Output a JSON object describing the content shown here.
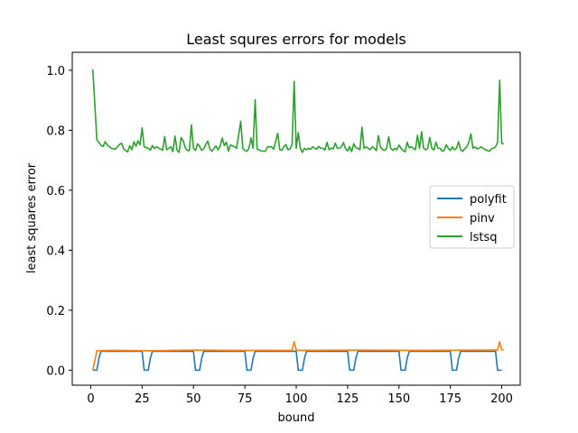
{
  "chart_data": {
    "type": "line",
    "title": "Least squres errors for models",
    "xlabel": "bound",
    "ylabel": "least squares error",
    "xlim": [
      -9,
      209
    ],
    "ylim": [
      -0.05,
      1.06
    ],
    "xticks": [
      0,
      25,
      50,
      75,
      100,
      125,
      150,
      175,
      200
    ],
    "yticks": [
      0.0,
      0.2,
      0.4,
      0.6,
      0.8,
      1.0
    ],
    "legend_position": "center-right",
    "grid": false,
    "series": [
      {
        "name": "polyfit",
        "color": "#1f77b4",
        "pattern": {
          "x_start": 1,
          "x_end": 200,
          "period": 25,
          "zero_len": 3,
          "ramp_start": 0.04,
          "plateau": 0.063,
          "x_step": 1
        }
      },
      {
        "name": "pinv",
        "color": "#ff7f0e",
        "points": [
          [
            1,
            0.0
          ],
          [
            3,
            0.065
          ],
          [
            10,
            0.066
          ],
          [
            30,
            0.065
          ],
          [
            50,
            0.067
          ],
          [
            70,
            0.066
          ],
          [
            98,
            0.066
          ],
          [
            99,
            0.095
          ],
          [
            100,
            0.068
          ],
          [
            101,
            0.066
          ],
          [
            130,
            0.067
          ],
          [
            160,
            0.066
          ],
          [
            190,
            0.067
          ],
          [
            198,
            0.067
          ],
          [
            199,
            0.095
          ],
          [
            200,
            0.068
          ],
          [
            201,
            0.067
          ]
        ]
      },
      {
        "name": "lstsq",
        "color": "#2ca02c",
        "points": [
          [
            1,
            1.003
          ],
          [
            3,
            0.768
          ],
          [
            5,
            0.75
          ],
          [
            6,
            0.746
          ],
          [
            7,
            0.762
          ],
          [
            8,
            0.751
          ],
          [
            10,
            0.74
          ],
          [
            12,
            0.737
          ],
          [
            14,
            0.753
          ],
          [
            15,
            0.757
          ],
          [
            16,
            0.738
          ],
          [
            18,
            0.728
          ],
          [
            19,
            0.749
          ],
          [
            20,
            0.735
          ],
          [
            21,
            0.762
          ],
          [
            22,
            0.747
          ],
          [
            23,
            0.765
          ],
          [
            24,
            0.752
          ],
          [
            25,
            0.808
          ],
          [
            26,
            0.745
          ],
          [
            28,
            0.74
          ],
          [
            29,
            0.734
          ],
          [
            30,
            0.749
          ],
          [
            31,
            0.739
          ],
          [
            32,
            0.745
          ],
          [
            34,
            0.737
          ],
          [
            35,
            0.734
          ],
          [
            36,
            0.779
          ],
          [
            37,
            0.735
          ],
          [
            38,
            0.74
          ],
          [
            39,
            0.745
          ],
          [
            40,
            0.729
          ],
          [
            41,
            0.781
          ],
          [
            42,
            0.734
          ],
          [
            43,
            0.726
          ],
          [
            44,
            0.776
          ],
          [
            45,
            0.765
          ],
          [
            46,
            0.742
          ],
          [
            47,
            0.733
          ],
          [
            48,
            0.732
          ],
          [
            49,
            0.818
          ],
          [
            50,
            0.74
          ],
          [
            51,
            0.733
          ],
          [
            52,
            0.755
          ],
          [
            53,
            0.746
          ],
          [
            54,
            0.733
          ],
          [
            55,
            0.738
          ],
          [
            56,
            0.753
          ],
          [
            57,
            0.764
          ],
          [
            58,
            0.737
          ],
          [
            59,
            0.73
          ],
          [
            60,
            0.74
          ],
          [
            61,
            0.748
          ],
          [
            62,
            0.735
          ],
          [
            63,
            0.748
          ],
          [
            64,
            0.774
          ],
          [
            65,
            0.749
          ],
          [
            66,
            0.76
          ],
          [
            67,
            0.73
          ],
          [
            68,
            0.751
          ],
          [
            70,
            0.745
          ],
          [
            71,
            0.74
          ],
          [
            72,
            0.785
          ],
          [
            73,
            0.83
          ],
          [
            74,
            0.74
          ],
          [
            75,
            0.733
          ],
          [
            76,
            0.73
          ],
          [
            77,
            0.74
          ],
          [
            78,
            0.775
          ],
          [
            79,
            0.74
          ],
          [
            80,
            0.902
          ],
          [
            81,
            0.738
          ],
          [
            83,
            0.731
          ],
          [
            85,
            0.73
          ],
          [
            86,
            0.745
          ],
          [
            88,
            0.745
          ],
          [
            89,
            0.737
          ],
          [
            91,
            0.79
          ],
          [
            92,
            0.735
          ],
          [
            93,
            0.733
          ],
          [
            94,
            0.746
          ],
          [
            95,
            0.752
          ],
          [
            96,
            0.735
          ],
          [
            97,
            0.738
          ],
          [
            98,
            0.753
          ],
          [
            99,
            0.963
          ],
          [
            100,
            0.74
          ],
          [
            101,
            0.792
          ],
          [
            102,
            0.74
          ],
          [
            103,
            0.726
          ],
          [
            104,
            0.74
          ],
          [
            105,
            0.735
          ],
          [
            106,
            0.74
          ],
          [
            107,
            0.737
          ],
          [
            108,
            0.745
          ],
          [
            109,
            0.74
          ],
          [
            110,
            0.737
          ],
          [
            111,
            0.746
          ],
          [
            112,
            0.74
          ],
          [
            113,
            0.74
          ],
          [
            114,
            0.734
          ],
          [
            115,
            0.76
          ],
          [
            116,
            0.735
          ],
          [
            117,
            0.741
          ],
          [
            118,
            0.738
          ],
          [
            119,
            0.757
          ],
          [
            120,
            0.74
          ],
          [
            121,
            0.74
          ],
          [
            122,
            0.745
          ],
          [
            123,
            0.759
          ],
          [
            124,
            0.738
          ],
          [
            125,
            0.731
          ],
          [
            126,
            0.745
          ],
          [
            127,
            0.729
          ],
          [
            128,
            0.755
          ],
          [
            129,
            0.742
          ],
          [
            130,
            0.74
          ],
          [
            131,
            0.735
          ],
          [
            132,
            0.81
          ],
          [
            133,
            0.74
          ],
          [
            134,
            0.745
          ],
          [
            135,
            0.74
          ],
          [
            136,
            0.735
          ],
          [
            137,
            0.745
          ],
          [
            138,
            0.74
          ],
          [
            139,
            0.732
          ],
          [
            140,
            0.782
          ],
          [
            141,
            0.745
          ],
          [
            142,
            0.736
          ],
          [
            143,
            0.733
          ],
          [
            144,
            0.74
          ],
          [
            145,
            0.778
          ],
          [
            146,
            0.74
          ],
          [
            147,
            0.733
          ],
          [
            148,
            0.74
          ],
          [
            149,
            0.735
          ],
          [
            150,
            0.751
          ],
          [
            151,
            0.74
          ],
          [
            152,
            0.733
          ],
          [
            153,
            0.728
          ],
          [
            154,
            0.76
          ],
          [
            155,
            0.742
          ],
          [
            156,
            0.745
          ],
          [
            157,
            0.74
          ],
          [
            158,
            0.735
          ],
          [
            159,
            0.783
          ],
          [
            160,
            0.74
          ],
          [
            161,
            0.795
          ],
          [
            162,
            0.74
          ],
          [
            163,
            0.735
          ],
          [
            164,
            0.74
          ],
          [
            165,
            0.776
          ],
          [
            166,
            0.74
          ],
          [
            167,
            0.734
          ],
          [
            168,
            0.76
          ],
          [
            169,
            0.74
          ],
          [
            170,
            0.74
          ],
          [
            171,
            0.73
          ],
          [
            172,
            0.733
          ],
          [
            173,
            0.752
          ],
          [
            174,
            0.74
          ],
          [
            175,
            0.733
          ],
          [
            176,
            0.745
          ],
          [
            177,
            0.735
          ],
          [
            178,
            0.74
          ],
          [
            179,
            0.762
          ],
          [
            180,
            0.735
          ],
          [
            181,
            0.73
          ],
          [
            182,
            0.738
          ],
          [
            183,
            0.745
          ],
          [
            184,
            0.76
          ],
          [
            185,
            0.788
          ],
          [
            186,
            0.74
          ],
          [
            187,
            0.745
          ],
          [
            188,
            0.738
          ],
          [
            189,
            0.74
          ],
          [
            190,
            0.745
          ],
          [
            191,
            0.74
          ],
          [
            192,
            0.735
          ],
          [
            193,
            0.733
          ],
          [
            194,
            0.73
          ],
          [
            195,
            0.738
          ],
          [
            196,
            0.74
          ],
          [
            197,
            0.745
          ],
          [
            198,
            0.76
          ],
          [
            199,
            0.967
          ],
          [
            200,
            0.757
          ],
          [
            201,
            0.754
          ]
        ]
      }
    ]
  }
}
